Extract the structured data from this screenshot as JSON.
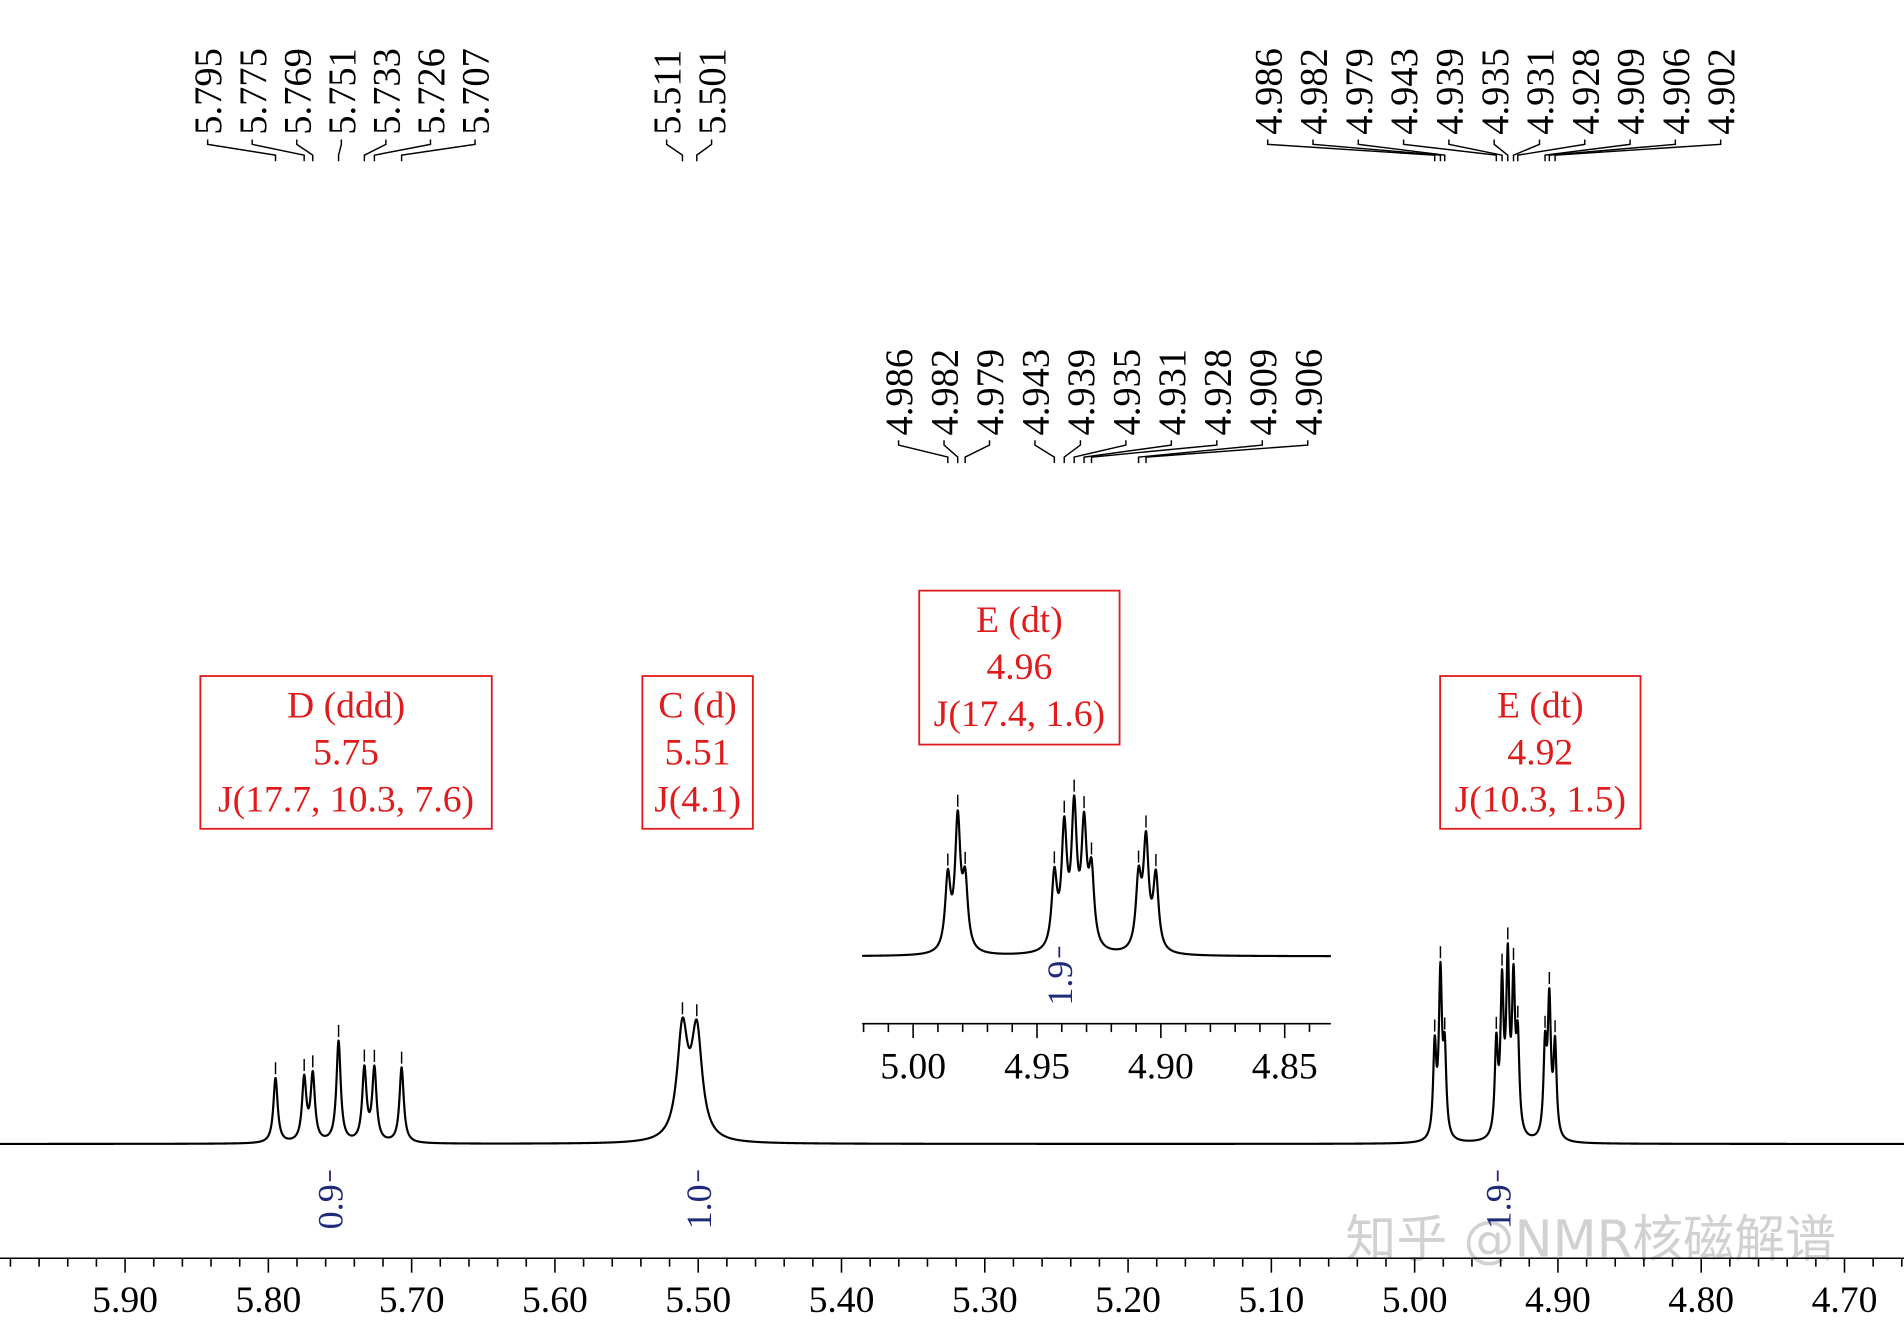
{
  "chart_data": {
    "type": "line",
    "title": "",
    "xlabel": "",
    "ylabel": "",
    "x_reversed": true,
    "xlim": [
      5.99,
      4.66
    ],
    "x_ticks": [
      "5.90",
      "5.80",
      "5.70",
      "5.60",
      "5.50",
      "5.40",
      "5.30",
      "5.20",
      "5.10",
      "5.00",
      "4.90",
      "4.80",
      "4.70"
    ],
    "peak_label_groups": [
      {
        "name": "D",
        "labels": [
          "5.795",
          "5.775",
          "5.769",
          "5.751",
          "5.733",
          "5.726",
          "5.707"
        ]
      },
      {
        "name": "C",
        "labels": [
          "5.511",
          "5.501"
        ]
      },
      {
        "name": "E",
        "labels": [
          "4.986",
          "4.982",
          "4.979",
          "4.943",
          "4.939",
          "4.935",
          "4.931",
          "4.928",
          "4.909",
          "4.906",
          "4.902"
        ]
      }
    ],
    "peaks": [
      {
        "ppm": 5.795,
        "intensity": 0.325
      },
      {
        "ppm": 5.775,
        "intensity": 0.313
      },
      {
        "ppm": 5.769,
        "intensity": 0.331
      },
      {
        "ppm": 5.751,
        "intensity": 0.506
      },
      {
        "ppm": 5.733,
        "intensity": 0.363
      },
      {
        "ppm": 5.726,
        "intensity": 0.363
      },
      {
        "ppm": 5.707,
        "intensity": 0.377
      },
      {
        "ppm": 5.511,
        "intensity": 0.542
      },
      {
        "ppm": 5.501,
        "intensity": 0.53
      },
      {
        "ppm": 4.986,
        "intensity": 0.452
      },
      {
        "ppm": 4.982,
        "intensity": 0.801
      },
      {
        "ppm": 4.979,
        "intensity": 0.41
      },
      {
        "ppm": 4.943,
        "intensity": 0.452
      },
      {
        "ppm": 4.939,
        "intensity": 0.723
      },
      {
        "ppm": 4.935,
        "intensity": 0.837
      },
      {
        "ppm": 4.931,
        "intensity": 0.723
      },
      {
        "ppm": 4.928,
        "intensity": 0.452
      },
      {
        "ppm": 4.909,
        "intensity": 0.434
      },
      {
        "ppm": 4.906,
        "intensity": 0.663
      },
      {
        "ppm": 4.902,
        "intensity": 0.458
      }
    ],
    "multiplets": [
      {
        "label": "D (ddd)",
        "shift": "5.75",
        "coupling": "J(17.7, 10.3, 7.6)"
      },
      {
        "label": "C (d)",
        "shift": "5.51",
        "coupling": "J(4.1)"
      },
      {
        "label": "E (dt)",
        "shift": "4.96",
        "coupling": "J(17.4, 1.6)"
      },
      {
        "label": "E (dt)",
        "shift": "4.92",
        "coupling": "J(10.3, 1.5)"
      }
    ],
    "integrals": [
      {
        "value": "0.9",
        "ppm": 5.757
      },
      {
        "value": "1.0",
        "ppm": 5.5
      },
      {
        "value": "1.9",
        "ppm": 4.942
      }
    ],
    "inset": {
      "xlim": [
        5.02,
        4.83
      ],
      "x_ticks": [
        "5.00",
        "4.95",
        "4.90",
        "4.85"
      ],
      "peak_labels": [
        "4.986",
        "4.982",
        "4.979",
        "4.943",
        "4.939",
        "4.935",
        "4.931",
        "4.928",
        "4.909",
        "4.906"
      ],
      "integral": {
        "value": "1.9",
        "ppm": 4.941
      }
    },
    "colors": {
      "trace": "#000000",
      "annotation": "#e01b1b",
      "integral": "#1f2a7a"
    }
  },
  "watermark": "知乎 @NMR核磁解谱"
}
